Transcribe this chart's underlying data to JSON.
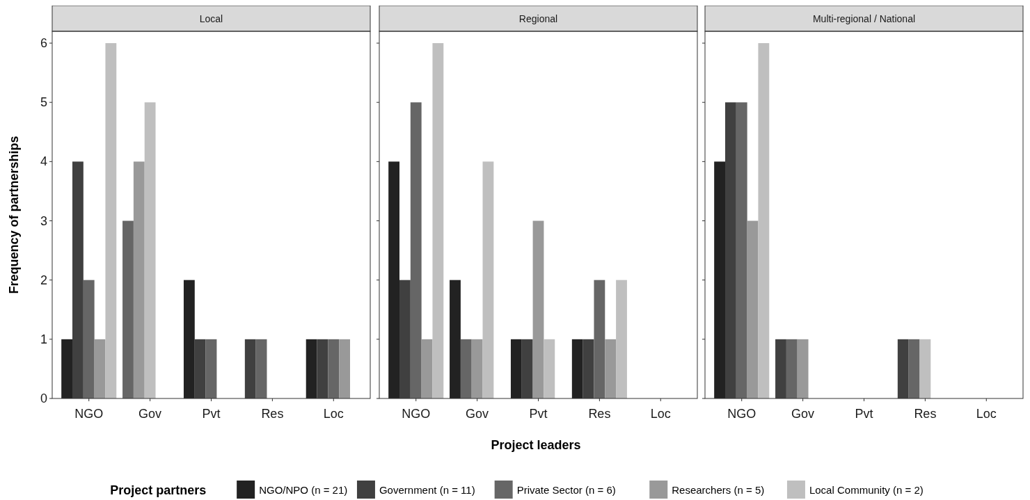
{
  "chart_data": [
    {
      "type": "bar",
      "title": "Local",
      "ylabel": "Frequency of partnerships",
      "categories": [
        "NGO",
        "Gov",
        "Pvt",
        "Res",
        "Loc"
      ],
      "ylim": [
        0,
        6.2
      ],
      "yticks": [
        0,
        1,
        2,
        3,
        4,
        5,
        6
      ],
      "series": [
        {
          "color": "#222222",
          "values": [
            1,
            null,
            2,
            null,
            1
          ]
        },
        {
          "color": "#404040",
          "values": [
            4,
            null,
            1,
            1,
            1
          ]
        },
        {
          "color": "#666666",
          "values": [
            2,
            3,
            1,
            1,
            1
          ]
        },
        {
          "color": "#999999",
          "values": [
            1,
            4,
            null,
            null,
            1
          ]
        },
        {
          "color": "#bfbfbf",
          "values": [
            6,
            5,
            null,
            null,
            null
          ]
        }
      ]
    },
    {
      "type": "bar",
      "title": "Regional",
      "xlabel": "Project leaders",
      "legend_title": "Project partners",
      "legend": "bottom",
      "tick_labels": "x",
      "categories": [
        "NGO",
        "Gov",
        "Pvt",
        "Res",
        "Loc"
      ],
      "ylim": [
        0,
        6.2
      ],
      "yticks": [
        0,
        1,
        2,
        3,
        4,
        5,
        6
      ],
      "series": [
        {
          "name": "NGO/NPO (n = 21)",
          "color": "#222222",
          "values": [
            4,
            2,
            1,
            1,
            null
          ]
        },
        {
          "name": "Government (n = 11)",
          "color": "#404040",
          "values": [
            2,
            null,
            1,
            1,
            null
          ]
        },
        {
          "name": "Private Sector (n = 6)",
          "color": "#666666",
          "values": [
            5,
            1,
            null,
            2,
            null
          ]
        },
        {
          "name": "Researchers (n = 5)",
          "color": "#999999",
          "values": [
            1,
            1,
            3,
            1,
            null
          ]
        },
        {
          "name": "Local Community (n = 2)",
          "color": "#bfbfbf",
          "values": [
            6,
            4,
            1,
            2,
            null
          ]
        }
      ]
    },
    {
      "type": "bar",
      "title": "Multi-regional / National",
      "tick_labels": "x",
      "categories": [
        "NGO",
        "Gov",
        "Pvt",
        "Res",
        "Loc"
      ],
      "ylim": [
        0,
        6.2
      ],
      "yticks": [
        0,
        1,
        2,
        3,
        4,
        5,
        6
      ],
      "series": [
        {
          "color": "#222222",
          "values": [
            4,
            null,
            null,
            null,
            null
          ]
        },
        {
          "color": "#404040",
          "values": [
            5,
            1,
            null,
            1,
            null
          ]
        },
        {
          "color": "#666666",
          "values": [
            5,
            1,
            null,
            1,
            null
          ]
        },
        {
          "color": "#999999",
          "values": [
            3,
            1,
            null,
            null,
            null
          ]
        },
        {
          "color": "#bfbfbf",
          "values": [
            6,
            null,
            null,
            1,
            null
          ]
        }
      ]
    }
  ]
}
